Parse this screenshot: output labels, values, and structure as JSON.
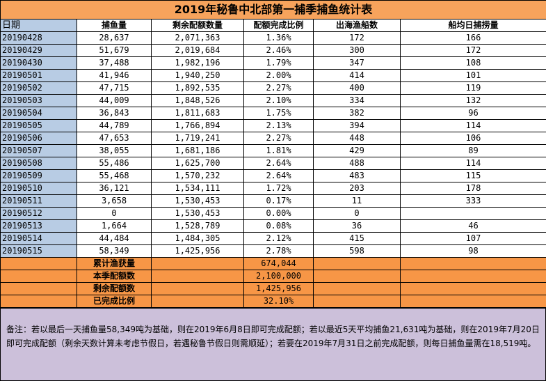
{
  "table": {
    "title": "2019年秘鲁中北部第一捕季捕鱼统计表",
    "header": [
      "日期",
      "捕鱼量",
      "剩余配额数量",
      "配额完成比例",
      "出海渔船数",
      "船均日捕捞量"
    ],
    "rows": [
      [
        "20190428",
        "28,637",
        "2,071,363",
        "1.36%",
        "172",
        "166"
      ],
      [
        "20190429",
        "51,679",
        "2,019,684",
        "2.46%",
        "300",
        "172"
      ],
      [
        "20190430",
        "37,488",
        "1,982,196",
        "1.79%",
        "347",
        "108"
      ],
      [
        "20190501",
        "41,946",
        "1,940,250",
        "2.00%",
        "414",
        "101"
      ],
      [
        "20190502",
        "47,715",
        "1,892,535",
        "2.27%",
        "400",
        "119"
      ],
      [
        "20190503",
        "44,009",
        "1,848,526",
        "2.10%",
        "334",
        "132"
      ],
      [
        "20190504",
        "36,843",
        "1,811,683",
        "1.75%",
        "382",
        "96"
      ],
      [
        "20190505",
        "44,789",
        "1,766,894",
        "2.13%",
        "394",
        "114"
      ],
      [
        "20190506",
        "47,653",
        "1,719,241",
        "2.27%",
        "448",
        "106"
      ],
      [
        "20190507",
        "38,055",
        "1,681,186",
        "1.81%",
        "429",
        "89"
      ],
      [
        "20190508",
        "55,486",
        "1,625,700",
        "2.64%",
        "488",
        "114"
      ],
      [
        "20190509",
        "55,468",
        "1,570,232",
        "2.64%",
        "483",
        "115"
      ],
      [
        "20190510",
        "36,121",
        "1,534,111",
        "1.72%",
        "203",
        "178"
      ],
      [
        "20190511",
        "3,658",
        "1,530,453",
        "0.17%",
        "11",
        "333"
      ],
      [
        "20190512",
        "0",
        "1,530,453",
        "0.00%",
        "0",
        null
      ],
      [
        "20190513",
        "1,664",
        "1,528,789",
        "0.08%",
        "36",
        "46"
      ],
      [
        "20190514",
        "44,484",
        "1,484,305",
        "2.12%",
        "415",
        "107"
      ],
      [
        "20190515",
        "58,349",
        "1,425,956",
        "2.78%",
        "598",
        "98"
      ]
    ],
    "summary": [
      {
        "label": "累计渔获量",
        "value": "674,044"
      },
      {
        "label": "本季配额数",
        "value": "2,100,000"
      },
      {
        "label": "剩余配额数",
        "value": "1,425,956"
      },
      {
        "label": "已完成比例",
        "value": "32.10%"
      }
    ]
  },
  "note": "备注：若以最后一天捕鱼量58,349吨为基础，则在2019年6月8日即可完成配额；若以最近5天平均捕鱼21,631吨为基础，则在2019年7月20日即可完成配额（剩余天数计算未考虑节假日，若遇秘鲁节假日则需顺延）；若要在2019年7月31日之前完成配额，则每日捕鱼量需在18,519吨。"
}
